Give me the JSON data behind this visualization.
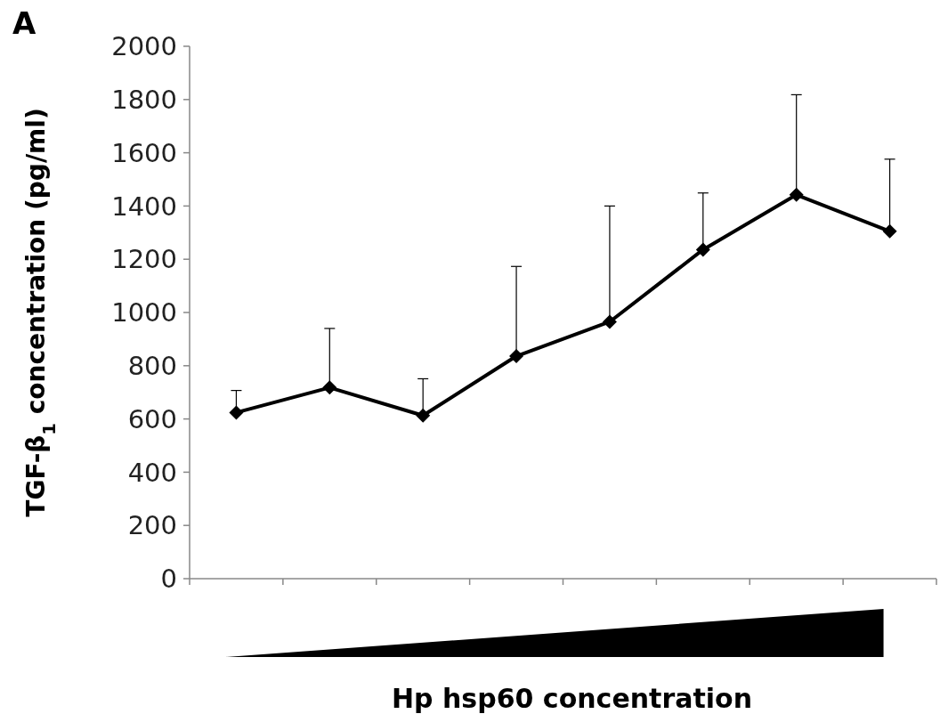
{
  "chart_data": {
    "type": "line",
    "title": "A",
    "xlabel": "Hp hsp60 concentration",
    "ylabel": "TGF-β$_{1}$ concentration (pg/ml)",
    "categories": [
      null,
      null,
      null,
      null,
      null,
      null,
      null,
      null
    ],
    "series": [
      {
        "color": "#000000",
        "values": [
          624,
          718,
          613,
          836,
          965,
          1236,
          1442,
          1305
        ],
        "errors": [
          [
            624,
            707
          ],
          [
            718,
            940
          ],
          [
            613,
            751
          ],
          [
            836,
            1173
          ],
          [
            965,
            1400
          ],
          [
            1236,
            1449
          ],
          [
            1442,
            1818
          ],
          [
            1305,
            1576
          ]
        ]
      }
    ],
    "ylim": [
      0,
      2000
    ],
    "yticks": [
      0,
      200,
      400,
      600,
      800,
      1000,
      1200,
      1400,
      1600,
      1800,
      2000
    ],
    "marker": "diamond",
    "line_style": "solid",
    "grid": false
  }
}
